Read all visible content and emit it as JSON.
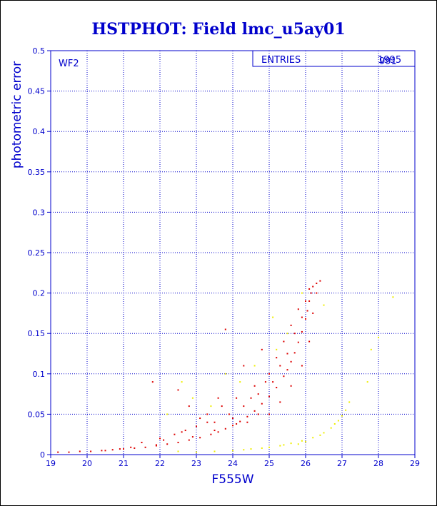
{
  "figure": {
    "title": "HSTPHOT: Field lmc_u5ay01",
    "panel_label": "WF2",
    "stats_label": "ENTRIES",
    "stats_value": "1995",
    "stats_value_overlay": "991"
  },
  "chart_data": {
    "type": "scatter",
    "title": "HSTPHOT: Field lmc_u5ay01",
    "xlabel": "F555W",
    "ylabel": "photometric error",
    "xlim": [
      19,
      29
    ],
    "ylim": [
      0,
      0.5
    ],
    "xticks": [
      "19",
      "20",
      "21",
      "22",
      "23",
      "24",
      "25",
      "26",
      "27",
      "28",
      "29"
    ],
    "yticks": [
      "0",
      "0.05",
      "0.1",
      "0.15",
      "0.2",
      "0.25",
      "0.3",
      "0.35",
      "0.4",
      "0.45",
      "0.5"
    ],
    "grid": true,
    "colors": {
      "axis": "#0000cc",
      "grid": "#0000cc",
      "red": "#dd0000",
      "yellow": "#eeee00"
    },
    "series": [
      {
        "color": "#dd0000",
        "points": [
          [
            19.2,
            0.003
          ],
          [
            19.5,
            0.003
          ],
          [
            19.8,
            0.004
          ],
          [
            20.1,
            0.004
          ],
          [
            20.4,
            0.005
          ],
          [
            20.7,
            0.006
          ],
          [
            21.0,
            0.007
          ],
          [
            21.3,
            0.008
          ],
          [
            21.6,
            0.009
          ],
          [
            21.9,
            0.011
          ],
          [
            22.2,
            0.013
          ],
          [
            22.5,
            0.015
          ],
          [
            22.8,
            0.018
          ],
          [
            23.1,
            0.021
          ],
          [
            23.4,
            0.025
          ],
          [
            23.6,
            0.028
          ],
          [
            23.8,
            0.032
          ],
          [
            24.0,
            0.036
          ],
          [
            24.2,
            0.041
          ],
          [
            24.4,
            0.047
          ],
          [
            24.6,
            0.054
          ],
          [
            24.8,
            0.063
          ],
          [
            25.0,
            0.072
          ],
          [
            25.2,
            0.083
          ],
          [
            25.4,
            0.097
          ],
          [
            25.5,
            0.105
          ],
          [
            25.6,
            0.115
          ],
          [
            25.7,
            0.126
          ],
          [
            25.8,
            0.139
          ],
          [
            25.9,
            0.152
          ],
          [
            26.0,
            0.168
          ],
          [
            26.05,
            0.178
          ],
          [
            26.1,
            0.19
          ],
          [
            26.15,
            0.2
          ],
          [
            26.2,
            0.208
          ],
          [
            26.3,
            0.212
          ],
          [
            26.4,
            0.215
          ],
          [
            23.5,
            0.04
          ],
          [
            23.9,
            0.05
          ],
          [
            24.3,
            0.06
          ],
          [
            24.7,
            0.075
          ],
          [
            25.1,
            0.09
          ],
          [
            25.3,
            0.11
          ],
          [
            25.5,
            0.125
          ],
          [
            25.7,
            0.15
          ],
          [
            25.9,
            0.17
          ],
          [
            26.0,
            0.19
          ],
          [
            26.1,
            0.205
          ],
          [
            25.8,
            0.18
          ],
          [
            25.6,
            0.16
          ],
          [
            24.9,
            0.09
          ],
          [
            24.5,
            0.07
          ],
          [
            22.0,
            0.02
          ],
          [
            22.4,
            0.025
          ],
          [
            22.7,
            0.03
          ],
          [
            23.0,
            0.035
          ],
          [
            23.3,
            0.04
          ],
          [
            23.7,
            0.06
          ],
          [
            24.1,
            0.07
          ],
          [
            24.6,
            0.085
          ],
          [
            21.8,
            0.09
          ],
          [
            22.5,
            0.08
          ],
          [
            23.3,
            0.05
          ],
          [
            24.0,
            0.045
          ],
          [
            25.0,
            0.1
          ],
          [
            25.4,
            0.14
          ],
          [
            23.8,
            0.155
          ],
          [
            22.8,
            0.06
          ],
          [
            21.5,
            0.015
          ],
          [
            22.1,
            0.018
          ],
          [
            22.9,
            0.022
          ],
          [
            23.5,
            0.03
          ],
          [
            24.1,
            0.038
          ],
          [
            24.7,
            0.05
          ],
          [
            25.3,
            0.065
          ],
          [
            25.6,
            0.085
          ],
          [
            25.9,
            0.11
          ],
          [
            26.1,
            0.14
          ],
          [
            26.2,
            0.175
          ],
          [
            26.3,
            0.2
          ],
          [
            20.5,
            0.005
          ],
          [
            20.9,
            0.007
          ],
          [
            21.2,
            0.009
          ],
          [
            21.9,
            0.012
          ],
          [
            24.3,
            0.11
          ],
          [
            24.8,
            0.13
          ],
          [
            25.2,
            0.12
          ],
          [
            25.0,
            0.05
          ],
          [
            24.4,
            0.04
          ],
          [
            22.6,
            0.028
          ],
          [
            23.1,
            0.045
          ],
          [
            23.6,
            0.07
          ]
        ]
      },
      {
        "color": "#eeee00",
        "points": [
          [
            22.5,
            0.004
          ],
          [
            23.0,
            0.003
          ],
          [
            23.5,
            0.004
          ],
          [
            24.0,
            0.005
          ],
          [
            24.5,
            0.007
          ],
          [
            25.0,
            0.009
          ],
          [
            25.3,
            0.011
          ],
          [
            25.6,
            0.014
          ],
          [
            25.9,
            0.017
          ],
          [
            26.2,
            0.021
          ],
          [
            26.5,
            0.027
          ],
          [
            26.7,
            0.033
          ],
          [
            26.9,
            0.042
          ],
          [
            27.1,
            0.055
          ],
          [
            27.2,
            0.065
          ],
          [
            26.0,
            0.016
          ],
          [
            25.8,
            0.013
          ],
          [
            25.4,
            0.012
          ],
          [
            24.8,
            0.008
          ],
          [
            24.3,
            0.006
          ],
          [
            26.4,
            0.024
          ],
          [
            26.8,
            0.038
          ],
          [
            27.0,
            0.048
          ],
          [
            22.6,
            0.09
          ],
          [
            23.4,
            0.06
          ],
          [
            23.8,
            0.1
          ],
          [
            24.6,
            0.11
          ],
          [
            25.2,
            0.13
          ],
          [
            25.5,
            0.15
          ],
          [
            25.9,
            0.2
          ],
          [
            26.5,
            0.185
          ],
          [
            27.7,
            0.09
          ],
          [
            28.0,
            0.145
          ],
          [
            28.4,
            0.195
          ],
          [
            27.8,
            0.13
          ],
          [
            22.2,
            0.05
          ],
          [
            22.9,
            0.07
          ],
          [
            24.2,
            0.09
          ],
          [
            25.1,
            0.17
          ]
        ]
      }
    ]
  }
}
